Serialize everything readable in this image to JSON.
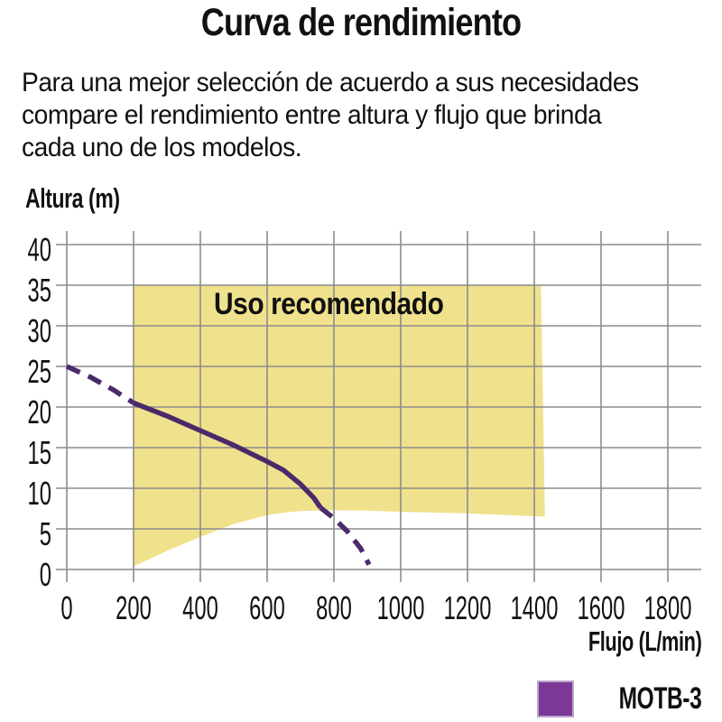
{
  "header": {
    "title": "Curva de rendimiento",
    "description_lines": [
      "Para una mejor selección de acuerdo a sus necesidades",
      "compare el rendimiento entre altura y flujo que brinda",
      "cada uno de los modelos."
    ]
  },
  "chart_data": {
    "type": "line",
    "title": "Curva de rendimiento",
    "xlabel": "Flujo (L/min)",
    "ylabel": "Altura (m)",
    "xlim": [
      0,
      1800
    ],
    "ylim": [
      0,
      40
    ],
    "x_ticks": [
      0,
      200,
      400,
      600,
      800,
      1000,
      1200,
      1400,
      1600,
      1800
    ],
    "y_ticks": [
      0,
      5,
      10,
      15,
      20,
      25,
      30,
      35,
      40
    ],
    "grid": true,
    "grid_color": "#8c8c8c",
    "legend_position": "bottom-right",
    "recommended_region": {
      "label": "Uso recomendado",
      "color": "#F0E18C",
      "polygon": [
        [
          200,
          35
        ],
        [
          1420,
          35
        ],
        [
          1432,
          6.5
        ],
        [
          1200,
          6.9
        ],
        [
          1000,
          7.1
        ],
        [
          900,
          7.25
        ],
        [
          800,
          7.3
        ],
        [
          700,
          7.2
        ],
        [
          650,
          7.0
        ],
        [
          600,
          6.7
        ],
        [
          500,
          5.6
        ],
        [
          400,
          4.0
        ],
        [
          300,
          2.3
        ],
        [
          250,
          1.3
        ],
        [
          200,
          0.4
        ]
      ]
    },
    "series": [
      {
        "name": "MOTB-3",
        "curve_color": "#4B2A6B",
        "legend_color": "#7B3897",
        "segments": [
          {
            "style": "dashed",
            "points": [
              [
                0,
                25
              ],
              [
                70,
                23.7
              ],
              [
                140,
                22.1
              ],
              [
                200,
                20.5
              ]
            ]
          },
          {
            "style": "solid",
            "points": [
              [
                200,
                20.5
              ],
              [
                300,
                18.9
              ],
              [
                400,
                17.1
              ],
              [
                500,
                15.3
              ],
              [
                600,
                13.3
              ],
              [
                650,
                12.2
              ],
              [
                700,
                10.5
              ],
              [
                740,
                8.8
              ],
              [
                760,
                7.6
              ]
            ]
          },
          {
            "style": "dashed",
            "points": [
              [
                760,
                7.6
              ],
              [
                800,
                6.3
              ],
              [
                840,
                4.7
              ],
              [
                880,
                2.6
              ],
              [
                905,
                0.6
              ]
            ]
          }
        ]
      }
    ]
  }
}
